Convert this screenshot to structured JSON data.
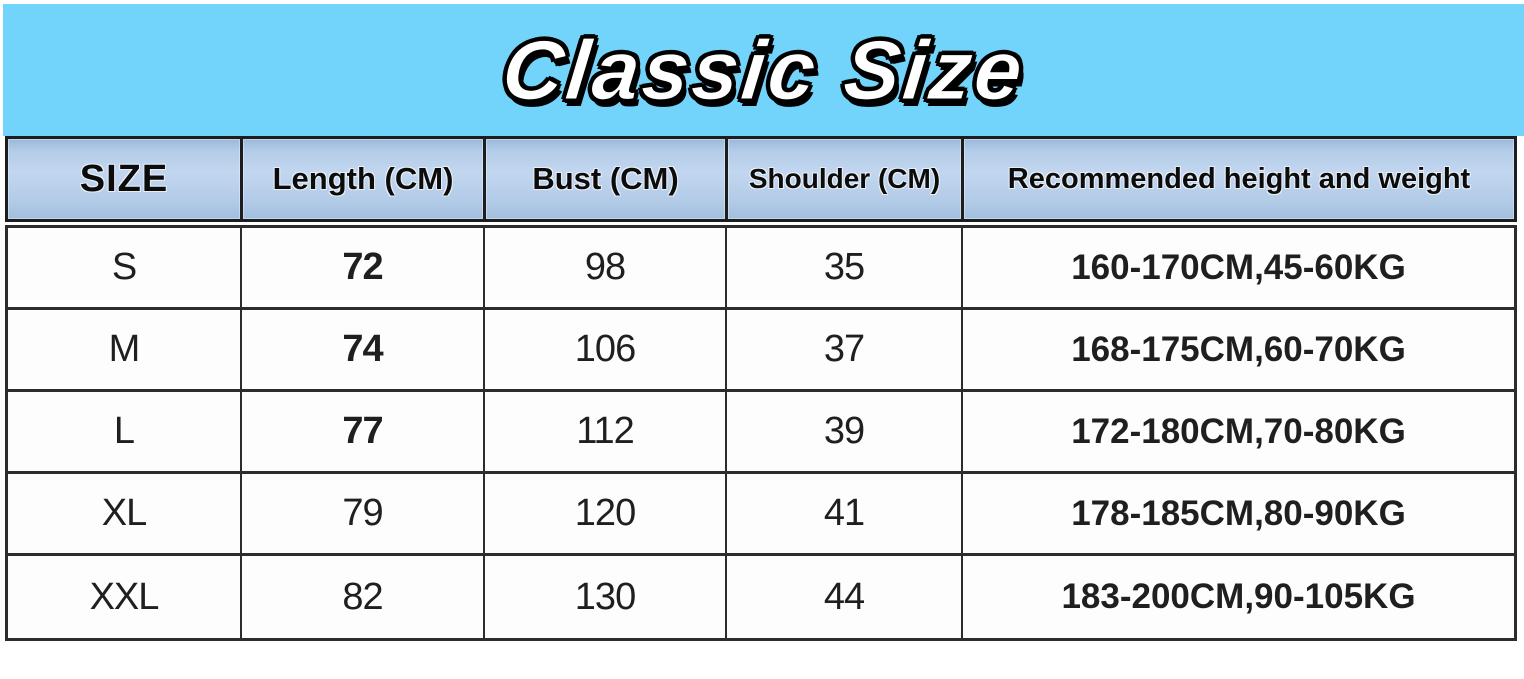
{
  "banner": {
    "title": "Classic Size",
    "bg_color": "#72d3fb"
  },
  "theme": {
    "header_fill": "#b5cde9",
    "border_dark": "#2c2c2c",
    "title_text": "#ffffff",
    "title_outline": "#000000"
  },
  "chart_data": {
    "type": "table",
    "title": "Classic Size",
    "columns": [
      "SIZE",
      "Length (CM)",
      "Bust (CM)",
      "Shoulder (CM)",
      "Recommended height and weight"
    ],
    "rows": [
      [
        "S",
        "72",
        "98",
        "35",
        "160-170CM,45-60KG"
      ],
      [
        "M",
        "74",
        "106",
        "37",
        "168-175CM,60-70KG"
      ],
      [
        "L",
        "77",
        "112",
        "39",
        "172-180CM,70-80KG"
      ],
      [
        "XL",
        "79",
        "120",
        "41",
        "178-185CM,80-90KG"
      ],
      [
        "XXL",
        "82",
        "130",
        "44",
        "183-200CM,90-105KG"
      ]
    ]
  }
}
